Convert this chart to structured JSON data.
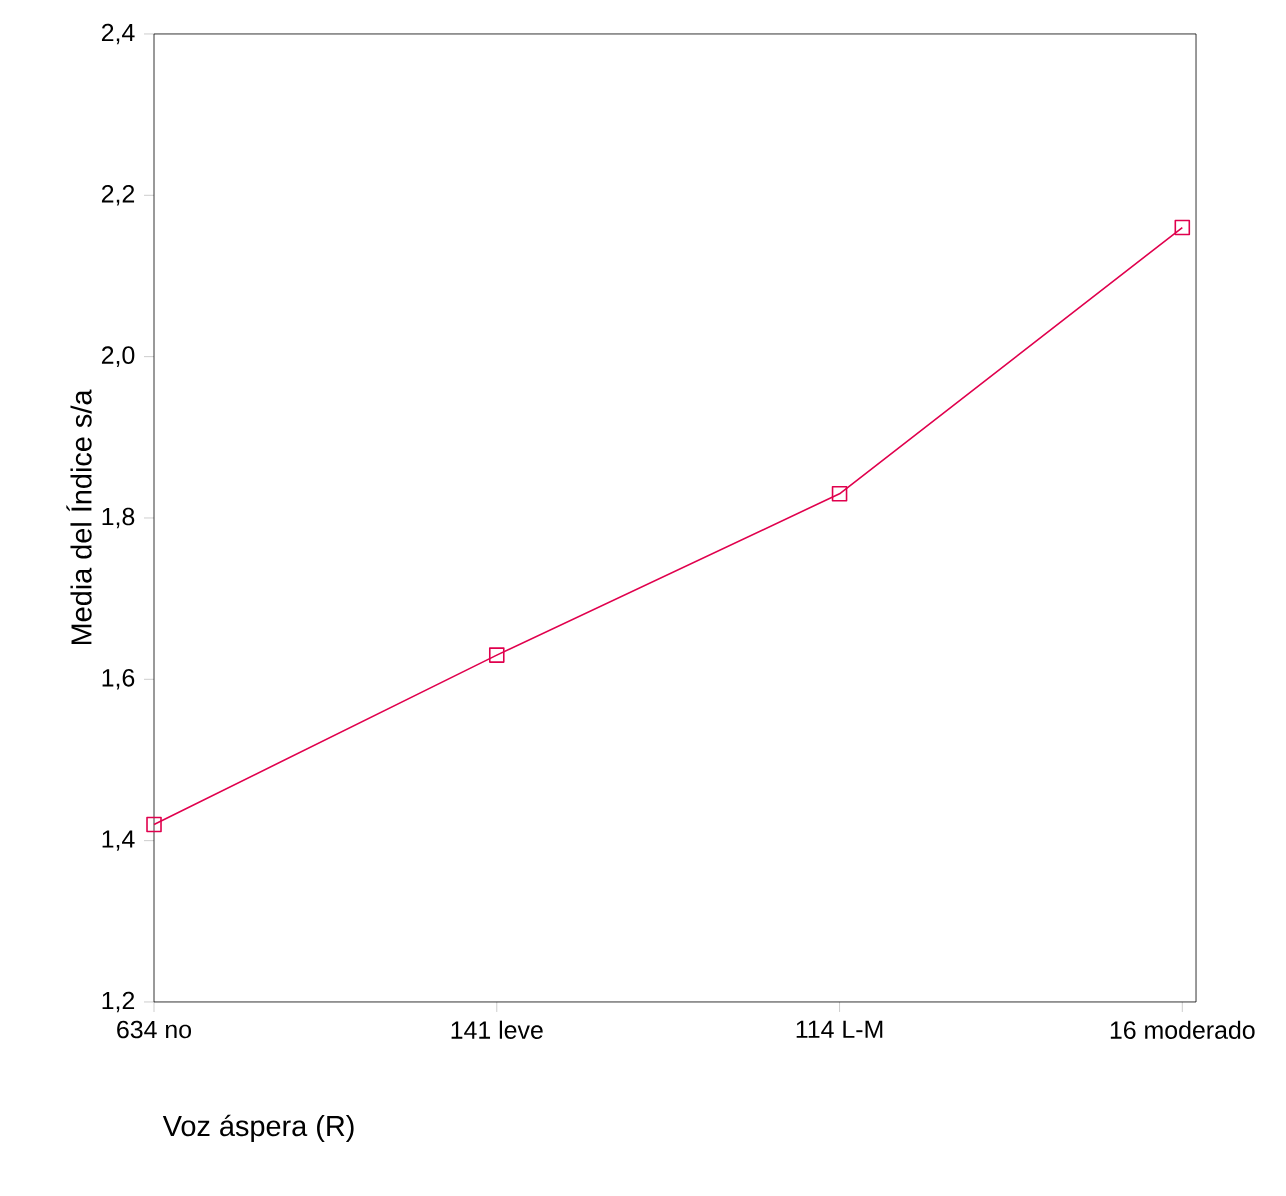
{
  "chart_data": {
    "type": "line",
    "xlabel": "Voz áspera (R)",
    "ylabel": "Media del Índice s/a",
    "categories": [
      "634 no",
      "141 leve",
      "114 L-M",
      "16 moderado"
    ],
    "values": [
      1.42,
      1.63,
      1.83,
      2.16
    ],
    "color": "#e0004d",
    "marker": "square",
    "line_style": "solid",
    "ylim": [
      1.2,
      2.4
    ],
    "yticks": [
      {
        "value": 1.2,
        "label": "1,2"
      },
      {
        "value": 1.4,
        "label": "1,4"
      },
      {
        "value": 1.6,
        "label": "1,6"
      },
      {
        "value": 1.8,
        "label": "1,8"
      },
      {
        "value": 2.0,
        "label": "2,0"
      },
      {
        "value": 2.2,
        "label": "2,2"
      },
      {
        "value": 2.4,
        "label": "2,4"
      }
    ]
  }
}
